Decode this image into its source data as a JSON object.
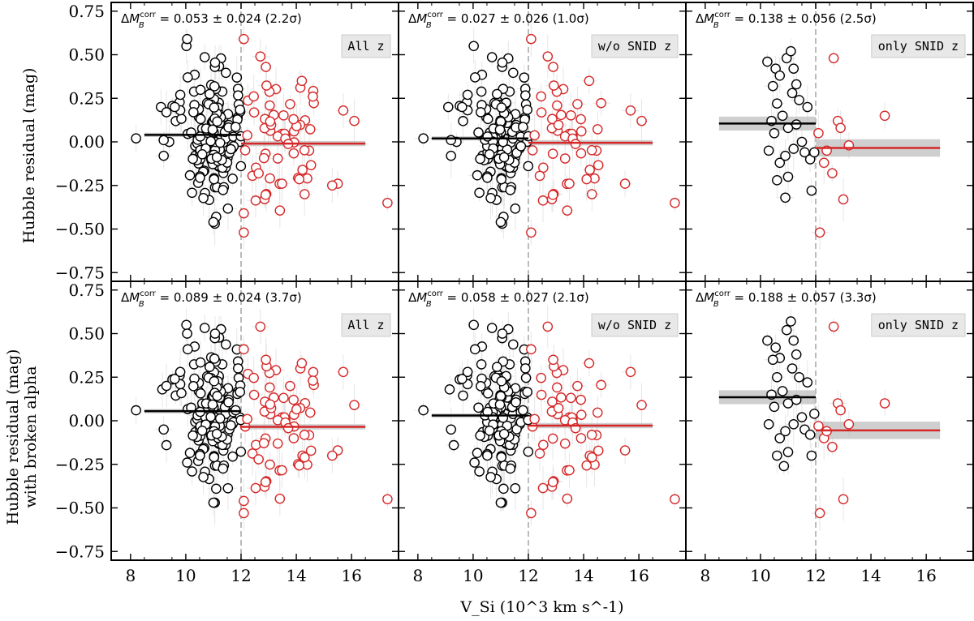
{
  "chart_data": {
    "type": "scatter",
    "xlabel": "V_Si (10^3 km s^-1)",
    "ylabel_top": "Hubble residual (mag)",
    "ylabel_bottom_line1": "Hubble residual (mag)",
    "ylabel_bottom_line2": "with broken alpha",
    "xlim": [
      7.3,
      17.7
    ],
    "ylim": [
      -0.8,
      0.8
    ],
    "xticks": [
      8,
      10,
      12,
      14,
      16
    ],
    "yticks": [
      -0.75,
      -0.5,
      -0.25,
      0.0,
      0.25,
      0.5,
      0.75
    ],
    "ytick_labels": [
      "−0.75",
      "−0.50",
      "−0.25",
      "0.00",
      "0.25",
      "0.50",
      "0.75"
    ],
    "threshold": 12,
    "colors": {
      "low": "#000000",
      "high": "#d62728",
      "band": "#bbbbbb",
      "threshold": "#bbbbbb"
    },
    "panels": [
      {
        "label": "All z",
        "delta": "0.053 ± 0.024",
        "sig": "(2.2σ)",
        "low_mean": 0.04,
        "low_x": [
          8.5,
          12
        ],
        "high_mean": -0.01,
        "high_x": [
          12,
          16.5
        ],
        "high_err": 0.015
      },
      {
        "label": "w/o SNID z",
        "delta": "0.027 ± 0.026",
        "sig": "(1.0σ)",
        "low_mean": 0.02,
        "low_x": [
          8.5,
          12
        ],
        "high_mean": -0.005,
        "high_x": [
          12,
          16.5
        ],
        "high_err": 0.015
      },
      {
        "label": "only SNID z",
        "delta": "0.138 ± 0.056",
        "sig": "(2.5σ)",
        "low_mean": 0.105,
        "low_x": [
          8.5,
          12
        ],
        "high_mean": -0.035,
        "high_x": [
          12,
          16.5
        ],
        "high_err": 0.05
      },
      {
        "label": "All z",
        "delta": "0.089 ± 0.024",
        "sig": "(3.7σ)",
        "low_mean": 0.055,
        "low_x": [
          8.5,
          12
        ],
        "high_mean": -0.035,
        "high_x": [
          12,
          16.5
        ],
        "high_err": 0.015
      },
      {
        "label": "w/o SNID z",
        "delta": "0.058 ± 0.027",
        "sig": "(2.1σ)",
        "low_mean": 0.03,
        "low_x": [
          8.5,
          12
        ],
        "high_mean": -0.028,
        "high_x": [
          12,
          16.5
        ],
        "high_err": 0.015
      },
      {
        "label": "only SNID z",
        "delta": "0.188 ± 0.057",
        "sig": "(3.3σ)",
        "low_mean": 0.135,
        "low_x": [
          8.5,
          12
        ],
        "high_mean": -0.055,
        "high_x": [
          12,
          16.5
        ],
        "high_err": 0.05
      }
    ],
    "snid_points": {
      "top": [
        [
          10.25,
          0.46
        ],
        [
          10.55,
          0.42
        ],
        [
          10.7,
          0.38
        ],
        [
          10.6,
          0.22
        ],
        [
          10.95,
          0.48
        ],
        [
          11.1,
          0.52
        ],
        [
          11.2,
          0.42
        ],
        [
          11.3,
          0.33
        ],
        [
          11.15,
          0.28
        ],
        [
          11.4,
          0.24
        ],
        [
          10.4,
          0.12
        ],
        [
          10.5,
          0.05
        ],
        [
          10.8,
          0.15
        ],
        [
          11.0,
          0.08
        ],
        [
          11.3,
          0.1
        ],
        [
          11.7,
          0.2
        ],
        [
          10.3,
          -0.05
        ],
        [
          10.7,
          -0.12
        ],
        [
          10.9,
          -0.08
        ],
        [
          11.2,
          -0.04
        ],
        [
          11.6,
          -0.06
        ],
        [
          11.8,
          -0.1
        ],
        [
          10.6,
          -0.22
        ],
        [
          11.0,
          -0.2
        ],
        [
          10.9,
          -0.32
        ],
        [
          11.85,
          -0.28
        ],
        [
          11.95,
          -0.06
        ],
        [
          12.3,
          -0.12
        ],
        [
          12.6,
          -0.18
        ],
        [
          12.8,
          0.12
        ],
        [
          12.9,
          0.08
        ],
        [
          13.0,
          -0.33
        ],
        [
          12.65,
          0.48
        ],
        [
          13.2,
          -0.02
        ],
        [
          12.15,
          -0.52
        ],
        [
          12.1,
          0.05
        ],
        [
          12.4,
          -0.05
        ],
        [
          14.5,
          0.15
        ],
        [
          11.5,
          0.0
        ],
        [
          10.45,
          0.32
        ]
      ],
      "bottom": [
        [
          10.25,
          0.46
        ],
        [
          10.55,
          0.42
        ],
        [
          10.7,
          0.36
        ],
        [
          10.6,
          0.25
        ],
        [
          10.95,
          0.52
        ],
        [
          11.1,
          0.57
        ],
        [
          11.2,
          0.46
        ],
        [
          11.3,
          0.38
        ],
        [
          11.15,
          0.3
        ],
        [
          11.4,
          0.25
        ],
        [
          10.4,
          0.15
        ],
        [
          10.5,
          0.08
        ],
        [
          10.8,
          0.17
        ],
        [
          11.0,
          0.1
        ],
        [
          11.3,
          0.12
        ],
        [
          11.7,
          0.22
        ],
        [
          10.3,
          -0.02
        ],
        [
          10.7,
          -0.1
        ],
        [
          10.9,
          -0.06
        ],
        [
          11.2,
          -0.02
        ],
        [
          11.6,
          -0.05
        ],
        [
          11.8,
          -0.08
        ],
        [
          10.6,
          -0.2
        ],
        [
          11.0,
          -0.18
        ],
        [
          10.85,
          -0.26
        ],
        [
          11.85,
          -0.2
        ],
        [
          11.95,
          0.04
        ],
        [
          12.3,
          -0.1
        ],
        [
          12.6,
          -0.15
        ],
        [
          12.8,
          0.1
        ],
        [
          12.9,
          0.06
        ],
        [
          13.0,
          -0.45
        ],
        [
          12.65,
          0.54
        ],
        [
          13.2,
          -0.02
        ],
        [
          12.15,
          -0.53
        ],
        [
          12.1,
          -0.03
        ],
        [
          12.4,
          -0.06
        ],
        [
          14.5,
          0.1
        ],
        [
          11.5,
          0.02
        ],
        [
          10.45,
          0.35
        ]
      ]
    },
    "extra_points_top": [
      [
        8.2,
        0.02
      ],
      [
        9.1,
        0.2
      ],
      [
        9.3,
        0.17
      ],
      [
        9.6,
        0.2
      ],
      [
        9.2,
        -0.08
      ],
      [
        9.4,
        0.0
      ],
      [
        9.8,
        0.27
      ],
      [
        10.05,
        0.59
      ],
      [
        12.1,
        0.59
      ],
      [
        12.7,
        0.49
      ],
      [
        12.9,
        0.43
      ],
      [
        14.2,
        0.35
      ],
      [
        14.6,
        0.26
      ],
      [
        15.7,
        0.18
      ],
      [
        16.1,
        0.12
      ],
      [
        17.3,
        -0.35
      ],
      [
        15.5,
        -0.24
      ],
      [
        15.3,
        -0.25
      ],
      [
        14.3,
        -0.3
      ],
      [
        11.1,
        -0.43
      ],
      [
        11.0,
        -0.46
      ],
      [
        12.1,
        -0.52
      ],
      [
        12.1,
        -0.41
      ],
      [
        9.2,
        0.01
      ],
      [
        13.9,
        0.13
      ]
    ],
    "extra_points_bottom": [
      [
        8.2,
        0.06
      ],
      [
        9.15,
        0.18
      ],
      [
        9.3,
        0.2
      ],
      [
        9.6,
        0.24
      ],
      [
        9.2,
        -0.05
      ],
      [
        9.3,
        -0.14
      ],
      [
        9.8,
        0.28
      ],
      [
        10.05,
        0.5
      ],
      [
        12.1,
        0.41
      ],
      [
        12.7,
        0.54
      ],
      [
        12.9,
        0.35
      ],
      [
        14.2,
        0.33
      ],
      [
        14.6,
        0.23
      ],
      [
        15.7,
        0.28
      ],
      [
        16.1,
        0.09
      ],
      [
        17.3,
        -0.45
      ],
      [
        15.5,
        -0.17
      ],
      [
        15.3,
        -0.2
      ],
      [
        14.3,
        -0.21
      ],
      [
        11.1,
        -0.39
      ],
      [
        11.0,
        -0.47
      ],
      [
        12.1,
        -0.53
      ],
      [
        12.1,
        -0.46
      ],
      [
        10.05,
        -0.24
      ],
      [
        13.9,
        0.12
      ]
    ]
  }
}
